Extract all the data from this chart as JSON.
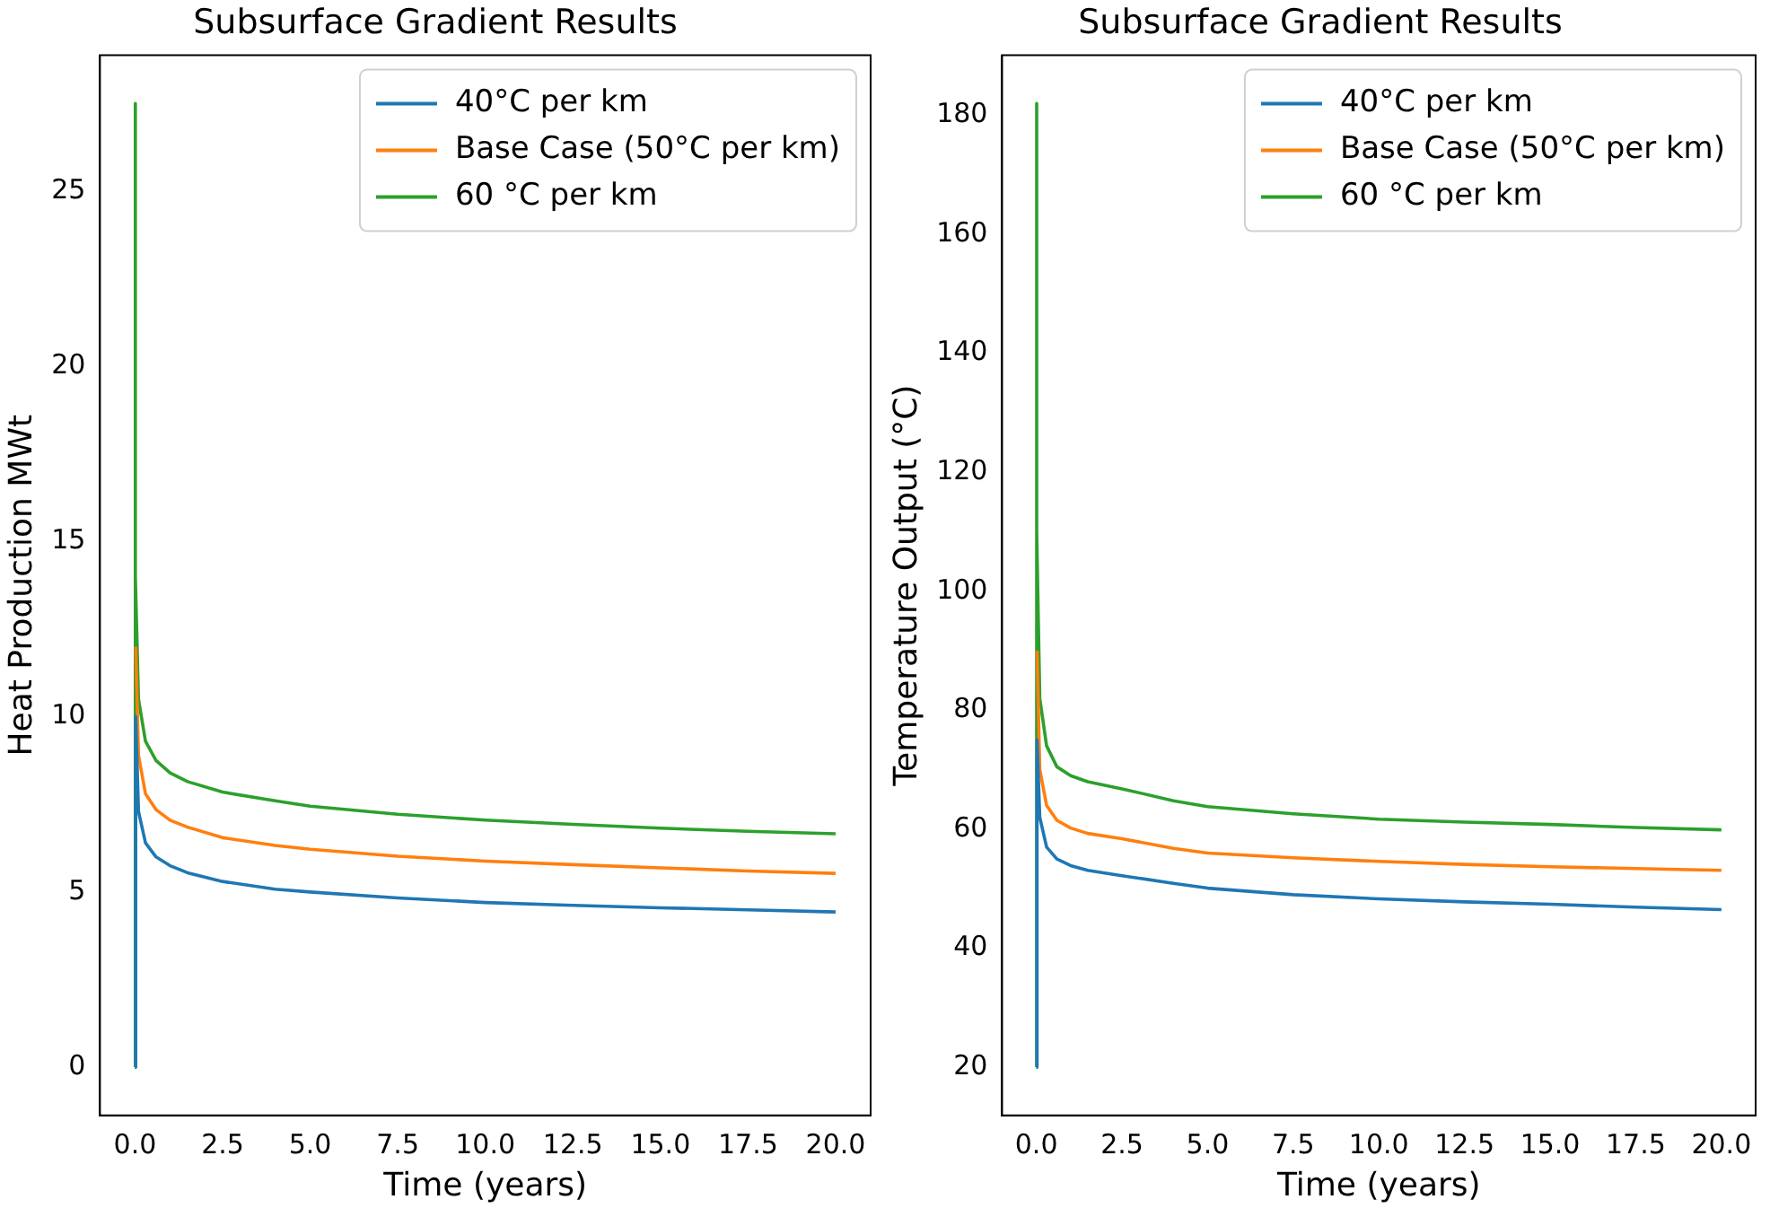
{
  "chart_data": [
    {
      "type": "line",
      "title": "Subsurface Gradient Results",
      "xlabel": "Time (years)",
      "ylabel": "Heat Production MWt",
      "legend": "top right",
      "grid": false,
      "xlim": [
        -1,
        21
      ],
      "ylim": [
        -1.375,
        28.875
      ],
      "xticks": [
        {
          "value": 0,
          "label": "0.0"
        },
        2.5,
        {
          "value": 5,
          "label": "5.0"
        },
        7.5,
        {
          "value": 10,
          "label": "10.0"
        },
        12.5,
        {
          "value": 15,
          "label": "15.0"
        },
        17.5,
        {
          "value": 20,
          "label": "20.0"
        }
      ],
      "yticks": [
        0,
        5,
        10,
        15,
        20,
        25
      ],
      "series": [
        {
          "name": "40°C per km",
          "color": "#1f77b4",
          "x": [
            0,
            0.02,
            0.1,
            0.3,
            0.6,
            1,
            1.5,
            2.5,
            4,
            5,
            7.5,
            10,
            12.5,
            15,
            17.5,
            20
          ],
          "values": [
            0,
            10,
            7.3,
            6.4,
            6.0,
            5.75,
            5.55,
            5.3,
            5.08,
            5.0,
            4.83,
            4.7,
            4.62,
            4.55,
            4.49,
            4.43
          ]
        },
        {
          "name": "Base Case (50°C per km)",
          "color": "#ff7f0e",
          "x": [
            0.02,
            0.1,
            0.3,
            0.6,
            1,
            1.5,
            2.5,
            4,
            5,
            7.5,
            10,
            12.5,
            15,
            17.5,
            20
          ],
          "values": [
            12,
            8.9,
            7.8,
            7.35,
            7.05,
            6.85,
            6.55,
            6.33,
            6.22,
            6.02,
            5.88,
            5.78,
            5.69,
            5.6,
            5.53
          ]
        },
        {
          "name": "60 °C per km",
          "color": "#2ca02c",
          "x": [
            0,
            0,
            0.02,
            0.1,
            0.3,
            0.6,
            1,
            1.5,
            2.5,
            4,
            5,
            7.5,
            10,
            12.5,
            15,
            17.5,
            20
          ],
          "values": [
            0,
            27.5,
            14,
            10.5,
            9.3,
            8.75,
            8.4,
            8.15,
            7.85,
            7.6,
            7.45,
            7.22,
            7.05,
            6.93,
            6.82,
            6.73,
            6.66
          ]
        }
      ]
    },
    {
      "type": "line",
      "title": "Subsurface Gradient Results",
      "xlabel": "Time (years)",
      "ylabel": "Temperature Output (°C)",
      "legend": "top right",
      "grid": false,
      "xlim": [
        -1,
        21
      ],
      "ylim": [
        11.9,
        190.1
      ],
      "xticks": [
        {
          "value": 0,
          "label": "0.0"
        },
        2.5,
        {
          "value": 5,
          "label": "5.0"
        },
        7.5,
        {
          "value": 10,
          "label": "10.0"
        },
        12.5,
        {
          "value": 15,
          "label": "15.0"
        },
        17.5,
        {
          "value": 20,
          "label": "20.0"
        }
      ],
      "yticks": [
        20,
        40,
        60,
        80,
        100,
        120,
        140,
        160,
        180
      ],
      "series": [
        {
          "name": "40°C per km",
          "color": "#1f77b4",
          "x": [
            0,
            0.02,
            0.1,
            0.3,
            0.6,
            1,
            1.5,
            2.5,
            4,
            5,
            7.5,
            10,
            12.5,
            15,
            17.5,
            20
          ],
          "values": [
            20,
            75,
            62,
            57,
            55,
            53.9,
            53.1,
            52.2,
            50.9,
            50.1,
            49,
            48.3,
            47.8,
            47.4,
            46.9,
            46.5
          ]
        },
        {
          "name": "Base Case (50°C per km)",
          "color": "#ff7f0e",
          "x": [
            0.02,
            0.1,
            0.3,
            0.6,
            1,
            1.5,
            2.5,
            4,
            5,
            7.5,
            10,
            12.5,
            15,
            17.5,
            20
          ],
          "values": [
            90,
            70,
            64,
            61.5,
            60.2,
            59.3,
            58.4,
            56.8,
            56,
            55.2,
            54.6,
            54.1,
            53.7,
            53.4,
            53.1
          ]
        },
        {
          "name": "60 °C per km",
          "color": "#2ca02c",
          "x": [
            0,
            0,
            0.02,
            0.1,
            0.3,
            0.6,
            1,
            1.5,
            2.5,
            4,
            5,
            7.5,
            10,
            12.5,
            15,
            17.5,
            20
          ],
          "values": [
            20,
            182,
            110,
            82,
            74,
            70.5,
            69,
            68,
            66.8,
            64.8,
            63.8,
            62.6,
            61.7,
            61.2,
            60.8,
            60.3,
            59.9
          ]
        }
      ]
    }
  ]
}
